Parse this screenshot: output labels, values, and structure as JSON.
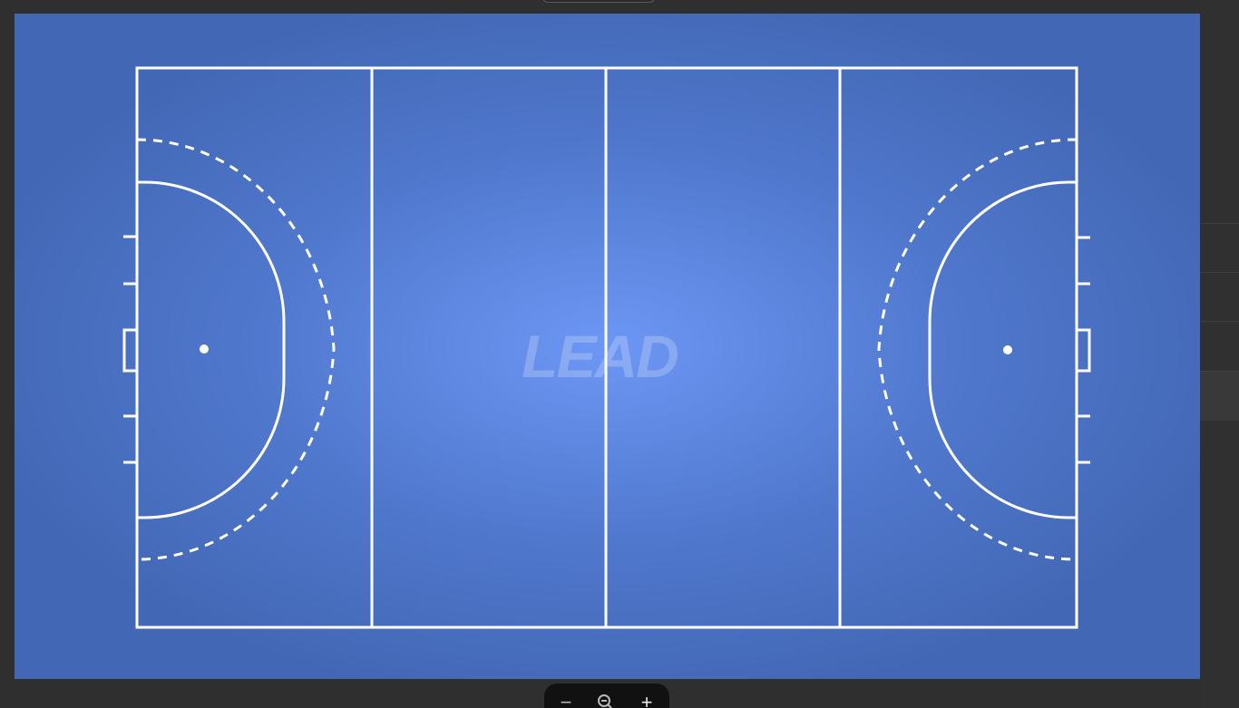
{
  "app": {
    "background": "#2f2f2f"
  },
  "field": {
    "type": "hockey-pitch",
    "turf_color_center": "#6d97f5",
    "turf_color_edge": "#4267b4",
    "line_color": "#ffffff",
    "watermark": "LEAD"
  },
  "zoom": {
    "zoom_out_label": "−",
    "zoom_reset_icon": "zoom-reset-icon",
    "zoom_in_label": "+"
  }
}
